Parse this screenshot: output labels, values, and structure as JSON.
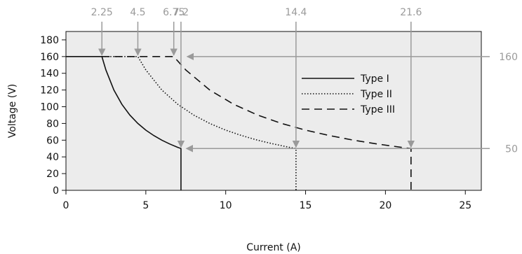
{
  "chart_data": {
    "type": "line",
    "title": "",
    "xlabel": "Current (A)",
    "ylabel": "Voltage (V)",
    "xlim": [
      0,
      26
    ],
    "ylim": [
      0,
      190
    ],
    "x_ticks": [
      0,
      5,
      10,
      15,
      20,
      25
    ],
    "y_ticks": [
      0,
      20,
      40,
      60,
      80,
      100,
      120,
      140,
      160,
      180
    ],
    "grid": false,
    "legend_position": "top-right",
    "colors": {
      "plot_background": "#ececec",
      "series": "#111111",
      "annotation": "#9a9a9a"
    },
    "series": [
      {
        "name": "Type I",
        "line_style": "solid",
        "constant_voltage": 160,
        "knee_current": 2.25,
        "max_current": 7.2,
        "min_voltage": 50,
        "points": [
          [
            0,
            160
          ],
          [
            2.25,
            160
          ],
          [
            2.5,
            144
          ],
          [
            3,
            120
          ],
          [
            3.5,
            102.9
          ],
          [
            4,
            90
          ],
          [
            4.5,
            80
          ],
          [
            5,
            72
          ],
          [
            5.5,
            65.5
          ],
          [
            6,
            60
          ],
          [
            6.5,
            55.4
          ],
          [
            7,
            51.4
          ],
          [
            7.2,
            50
          ],
          [
            7.2,
            0
          ]
        ]
      },
      {
        "name": "Type II",
        "line_style": "dotted",
        "constant_voltage": 160,
        "knee_current": 4.5,
        "max_current": 14.4,
        "min_voltage": 50,
        "points": [
          [
            2.25,
            160
          ],
          [
            4.5,
            160
          ],
          [
            5,
            144
          ],
          [
            6,
            120
          ],
          [
            7,
            102.9
          ],
          [
            8,
            90
          ],
          [
            9,
            80
          ],
          [
            10,
            72
          ],
          [
            11,
            65.5
          ],
          [
            12,
            60
          ],
          [
            13,
            55.4
          ],
          [
            14,
            51.4
          ],
          [
            14.4,
            50
          ],
          [
            14.4,
            0
          ]
        ]
      },
      {
        "name": "Type III",
        "line_style": "dashed",
        "constant_voltage": 160,
        "knee_current": 6.75,
        "max_current": 21.6,
        "min_voltage": 50,
        "points": [
          [
            2.25,
            160
          ],
          [
            6.75,
            160
          ],
          [
            7.5,
            144
          ],
          [
            9,
            120
          ],
          [
            10.5,
            102.9
          ],
          [
            12,
            90
          ],
          [
            13.5,
            80
          ],
          [
            15,
            72
          ],
          [
            16.5,
            65.5
          ],
          [
            18,
            60
          ],
          [
            19.5,
            55.4
          ],
          [
            21,
            51.4
          ],
          [
            21.6,
            50
          ],
          [
            21.6,
            0
          ]
        ]
      }
    ],
    "annotations": {
      "x_markers": [
        {
          "label": "2.25",
          "value": 2.25,
          "y": 160
        },
        {
          "label": "4.5",
          "value": 4.5,
          "y": 160
        },
        {
          "label": "6.75",
          "value": 6.75,
          "y": 160
        },
        {
          "label": "7.2",
          "value": 7.2,
          "y": 50
        },
        {
          "label": "14.4",
          "value": 14.4,
          "y": 50
        },
        {
          "label": "21.6",
          "value": 21.6,
          "y": 50
        }
      ],
      "y_markers": [
        {
          "label": "160",
          "value": 160,
          "x_from": 7.5
        },
        {
          "label": "50",
          "value": 50,
          "x_from": 7.45
        }
      ]
    }
  }
}
